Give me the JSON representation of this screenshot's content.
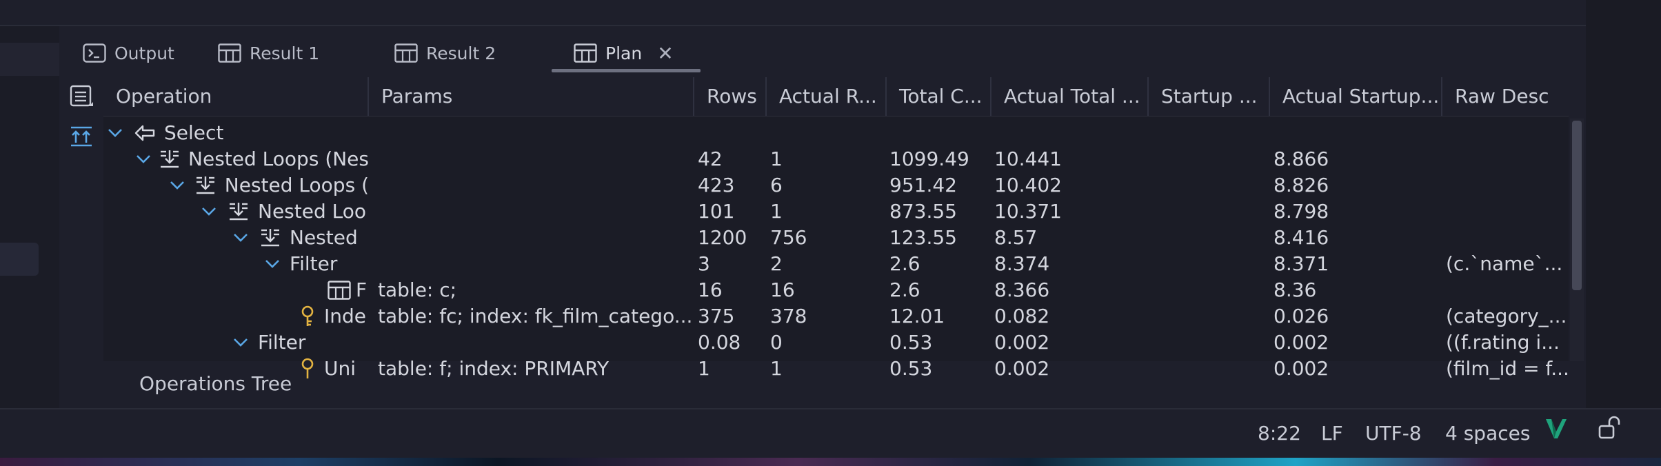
{
  "tabs": [
    {
      "label": "Output",
      "icon": "terminal-icon"
    },
    {
      "label": "Result 1",
      "icon": "table-icon"
    },
    {
      "label": "Result 2",
      "icon": "table-icon"
    },
    {
      "label": "Plan",
      "icon": "table-icon",
      "active": true,
      "closable": true
    }
  ],
  "columns": [
    "Operation",
    "Params",
    "Rows",
    "Actual R...",
    "Total C...",
    "Actual Total ...",
    "Startup ...",
    "Actual Startup...",
    "Raw Desc"
  ],
  "rows": [
    {
      "op": "Select",
      "icon": "select-arrow-icon",
      "expanded": true,
      "params": "",
      "rows": "",
      "actual_rows": "",
      "total_cost": "",
      "actual_total": "",
      "startup": "",
      "actual_startup": "",
      "raw": ""
    },
    {
      "op": "Nested Loops (Nes",
      "icon": "nested-loop-icon",
      "expanded": true,
      "params": "",
      "rows": "42",
      "actual_rows": "1",
      "total_cost": "1099.49",
      "actual_total": "10.441",
      "startup": "",
      "actual_startup": "8.866",
      "raw": ""
    },
    {
      "op": "Nested Loops (",
      "icon": "nested-loop-icon",
      "expanded": true,
      "params": "",
      "rows": "423",
      "actual_rows": "6",
      "total_cost": "951.42",
      "actual_total": "10.402",
      "startup": "",
      "actual_startup": "8.826",
      "raw": ""
    },
    {
      "op": "Nested Loo",
      "icon": "nested-loop-icon",
      "expanded": true,
      "params": "",
      "rows": "101",
      "actual_rows": "1",
      "total_cost": "873.55",
      "actual_total": "10.371",
      "startup": "",
      "actual_startup": "8.798",
      "raw": ""
    },
    {
      "op": "Nested",
      "icon": "nested-loop-icon",
      "expanded": true,
      "params": "",
      "rows": "1200",
      "actual_rows": "756",
      "total_cost": "123.55",
      "actual_total": "8.57",
      "startup": "",
      "actual_startup": "8.416",
      "raw": ""
    },
    {
      "op": "Filter",
      "icon": "",
      "expanded": true,
      "params": "",
      "rows": "3",
      "actual_rows": "2",
      "total_cost": "2.6",
      "actual_total": "8.374",
      "startup": "",
      "actual_startup": "8.371",
      "raw": "(c.`name`..."
    },
    {
      "op": "F",
      "icon": "table-icon",
      "expanded": false,
      "params": "table: c;",
      "rows": "16",
      "actual_rows": "16",
      "total_cost": "2.6",
      "actual_total": "8.366",
      "startup": "",
      "actual_startup": "8.36",
      "raw": ""
    },
    {
      "op": "Inde",
      "icon": "key-icon",
      "expanded": false,
      "params": "table: fc; index: fk_film_catego...",
      "rows": "375",
      "actual_rows": "378",
      "total_cost": "12.01",
      "actual_total": "0.082",
      "startup": "",
      "actual_startup": "0.026",
      "raw": "(category_..."
    },
    {
      "op": "Filter",
      "icon": "",
      "expanded": true,
      "params": "",
      "rows": "0.08",
      "actual_rows": "0",
      "total_cost": "0.53",
      "actual_total": "0.002",
      "startup": "",
      "actual_startup": "0.002",
      "raw": "((f.rating i..."
    },
    {
      "op": "Uni",
      "icon": "key-icon",
      "expanded": false,
      "params": "table: f; index: PRIMARY",
      "rows": "1",
      "actual_rows": "1",
      "total_cost": "0.53",
      "actual_total": "0.002",
      "startup": "",
      "actual_startup": "0.002",
      "raw": "(film_id = f..."
    }
  ],
  "footer": {
    "label": "Operations Tree"
  },
  "status": {
    "position": "8:22",
    "line_ending": "LF",
    "encoding": "UTF-8",
    "indent": "4 spaces"
  },
  "colors": {
    "background": "#1e1f2b",
    "accent_blue": "#5aa7e6",
    "key_yellow": "#e3b341",
    "vim_green": "#1fa37c"
  }
}
